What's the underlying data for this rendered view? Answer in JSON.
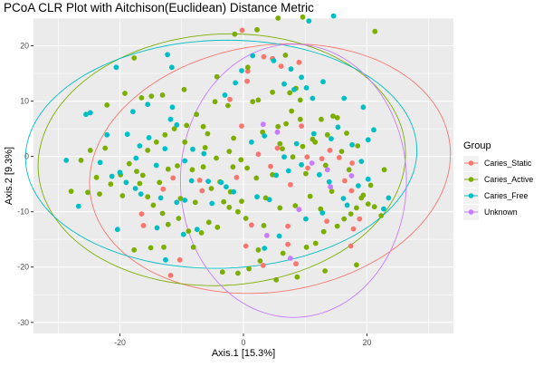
{
  "chart_data": {
    "type": "scatter",
    "title": "PCoA CLR Plot with Aitchison(Euclidean) Distance Metric",
    "xlabel": "Axis.1   [15.3%]",
    "ylabel": "Axis.2   [9.3%]",
    "xlim": [
      -34,
      34
    ],
    "ylim": [
      -32,
      25
    ],
    "xticks": [
      -20,
      0,
      20
    ],
    "yticks": [
      -30,
      -20,
      -10,
      0,
      10,
      20
    ],
    "grid": true,
    "legend": {
      "title": "Group",
      "position": "right"
    },
    "series": [
      {
        "name": "Caries_Static",
        "color": "#F8766D",
        "points": [
          [
            -0.2,
            22.8
          ],
          [
            3.3,
            18
          ],
          [
            4.7,
            17.7
          ],
          [
            9,
            17
          ],
          [
            6.1,
            16.3
          ],
          [
            0.7,
            15.4
          ],
          [
            0.6,
            13.6
          ],
          [
            -2.2,
            10.3
          ],
          [
            -0.3,
            5.5
          ],
          [
            2.4,
            0.4
          ],
          [
            -1.1,
            -3.8
          ],
          [
            -11.4,
            -3.9
          ],
          [
            -7.1,
            -4.3
          ],
          [
            -13,
            -5.9
          ],
          [
            -6.7,
            -6.2
          ],
          [
            -16.5,
            -10.4
          ],
          [
            -16.2,
            -12.5
          ],
          [
            -10.3,
            -18.7
          ],
          [
            -11.8,
            -21.5
          ],
          [
            0.4,
            -16.2
          ],
          [
            1.3,
            -12.4
          ],
          [
            7.2,
            -15.9
          ],
          [
            3.2,
            -19.7
          ],
          [
            8.5,
            -19.4
          ],
          [
            17.4,
            -16.2
          ],
          [
            13.5,
            -11.7
          ],
          [
            17.5,
            -6.2
          ],
          [
            16.4,
            -4.4
          ],
          [
            17.6,
            -1.2
          ],
          [
            18.8,
            -11.3
          ],
          [
            17.8,
            -13.1
          ],
          [
            7.2,
            -12.6
          ],
          [
            7.6,
            -5.1
          ],
          [
            5.5,
            1.5
          ],
          [
            4.4,
            -1.8
          ],
          [
            10.3,
            -0.1
          ],
          [
            15.5,
            -0.2
          ],
          [
            10.4,
            -2.1
          ],
          [
            14,
            1.1
          ],
          [
            12.7,
            -0.4
          ],
          [
            9.4,
            5.5
          ]
        ]
      },
      {
        "name": "Caries_Active",
        "color": "#7CAE00",
        "points": [
          [
            2.2,
            22.9
          ],
          [
            -1.4,
            22.1
          ],
          [
            21.3,
            22.6
          ],
          [
            5.6,
            25
          ],
          [
            9.6,
            25.2
          ],
          [
            -17.7,
            17.8
          ],
          [
            -19.2,
            11.4
          ],
          [
            -22.1,
            9.3
          ],
          [
            -16.5,
            10.6
          ],
          [
            -14.9,
            10.9
          ],
          [
            -13.1,
            11.1
          ],
          [
            -9.6,
            12.1
          ],
          [
            -9.2,
            5.6
          ],
          [
            -7.6,
            7.6
          ],
          [
            -6.5,
            5.4
          ],
          [
            -5.8,
            4.1
          ],
          [
            -4.6,
            9.9
          ],
          [
            -2.5,
            9.2
          ],
          [
            -2.3,
            0.9
          ],
          [
            -1.6,
            3.3
          ],
          [
            -0.4,
            -0.6
          ],
          [
            1.5,
            9.9
          ],
          [
            2.4,
            10.2
          ],
          [
            3.1,
            4.4
          ],
          [
            4.7,
            11.6
          ],
          [
            5.6,
            5.4
          ],
          [
            5.9,
            2.3
          ],
          [
            6.9,
            5.9
          ],
          [
            7.5,
            11.5
          ],
          [
            8,
            -0.1
          ],
          [
            9.6,
            1.8
          ],
          [
            10.1,
            -3.1
          ],
          [
            11.6,
            2.6
          ],
          [
            12.6,
            6.7
          ],
          [
            13.3,
            -1.6
          ],
          [
            13.6,
            3.9
          ],
          [
            14.5,
            7.3
          ],
          [
            15.2,
            7
          ],
          [
            15.9,
            0.9
          ],
          [
            16.7,
            4.2
          ],
          [
            17.1,
            -2.4
          ],
          [
            18.5,
            1.9
          ],
          [
            19.1,
            -7.5
          ],
          [
            18.3,
            -9.3
          ],
          [
            17.4,
            -10.4
          ],
          [
            16.3,
            -11.3
          ],
          [
            15.2,
            -12.6
          ],
          [
            13,
            -13.6
          ],
          [
            11.7,
            -15.7
          ],
          [
            10.2,
            -16.4
          ],
          [
            6.4,
            -17.5
          ],
          [
            2.4,
            -16.9
          ],
          [
            3.3,
            -12.5
          ],
          [
            0.4,
            -11.2
          ],
          [
            -0.9,
            -10
          ],
          [
            -2.3,
            -9.2
          ],
          [
            -3.2,
            -8.2
          ],
          [
            -4.2,
            -12.8
          ],
          [
            -5.6,
            -11.9
          ],
          [
            -6.8,
            -13.8
          ],
          [
            -8.1,
            -16.4
          ],
          [
            -8.9,
            -13.5
          ],
          [
            -10.5,
            -11.2
          ],
          [
            -12.2,
            -12.3
          ],
          [
            -13.1,
            -10.3
          ],
          [
            -14.6,
            -8.8
          ],
          [
            -15.5,
            -7.3
          ],
          [
            -16.8,
            -4.9
          ],
          [
            -17.3,
            -2.7
          ],
          [
            -18.5,
            -1.3
          ],
          [
            -19.9,
            -3.3
          ],
          [
            -21.5,
            -5
          ],
          [
            -23.3,
            -6.8
          ],
          [
            -25.2,
            -6.5
          ],
          [
            -27.9,
            -6.3
          ],
          [
            -26.3,
            -0.7
          ],
          [
            -24.8,
            1.1
          ],
          [
            -22.4,
            1.5
          ],
          [
            -23.8,
            -3.8
          ],
          [
            -19.6,
            -7.1
          ],
          [
            -17.7,
            -16.9
          ],
          [
            -15,
            -16.5
          ],
          [
            -12.9,
            -16.4
          ],
          [
            -3.4,
            -20.9
          ],
          [
            -0.9,
            -21.1
          ],
          [
            0.9,
            -20.3
          ],
          [
            2.7,
            -18.9
          ],
          [
            5.3,
            -22.3
          ],
          [
            8.7,
            -21.8
          ],
          [
            13.2,
            -20.7
          ],
          [
            18.3,
            -19.6
          ],
          [
            22.3,
            -10.7
          ],
          [
            21.2,
            -9.1
          ],
          [
            20.2,
            -8.6
          ],
          [
            19.4,
            -7
          ],
          [
            20.6,
            -5.2
          ],
          [
            22.8,
            -2.4
          ],
          [
            -3.8,
            -4.6
          ],
          [
            -6.5,
            -1.9
          ],
          [
            -9.5,
            2.6
          ],
          [
            -11.2,
            5
          ],
          [
            -12.7,
            3.9
          ],
          [
            -14.1,
            2.6
          ],
          [
            -15.5,
            1.1
          ],
          [
            -16.3,
            -3.4
          ],
          [
            -13.6,
            -4.7
          ],
          [
            -10.2,
            -7.6
          ],
          [
            -7.8,
            -8.3
          ],
          [
            -5.2,
            -5.8
          ],
          [
            -2.1,
            -6.4
          ],
          [
            -0.3,
            -8.1
          ],
          [
            3.6,
            -7.5
          ],
          [
            5.9,
            -9.3
          ],
          [
            8.4,
            -8.9
          ],
          [
            10.8,
            -7.2
          ],
          [
            12.5,
            -9.5
          ],
          [
            14.3,
            -6.3
          ],
          [
            11.2,
            3.1
          ],
          [
            9.2,
            6.7
          ],
          [
            7.8,
            8.2
          ],
          [
            6.3,
            1.4
          ],
          [
            4.7,
            -3.3
          ],
          [
            2.1,
            -3.9
          ],
          [
            0.6,
            -2.1
          ],
          [
            -1.7,
            -1.9
          ],
          [
            -4.4,
            -0.3
          ],
          [
            -6.2,
            1.6
          ],
          [
            -8.3,
            -2.4
          ],
          [
            -10.7,
            -1.7
          ],
          [
            -12.2,
            -2.3
          ],
          [
            -4.3,
            14.4
          ],
          [
            0.7,
            16.1
          ],
          [
            6.8,
            18.3
          ],
          [
            8.5,
            12.3
          ],
          [
            9.2,
            10.2
          ]
        ]
      },
      {
        "name": "Caries_Free",
        "color": "#00BFC4",
        "points": [
          [
            10.6,
            24.5
          ],
          [
            14.6,
            25.4
          ],
          [
            -12.3,
            18.4
          ],
          [
            -11.6,
            16.1
          ],
          [
            -20.6,
            16.1
          ],
          [
            -17.9,
            8.1
          ],
          [
            -15.5,
            9.4
          ],
          [
            -11.5,
            8.9
          ],
          [
            -11.8,
            6.7
          ],
          [
            -10.8,
            5.7
          ],
          [
            -3,
            11.1
          ],
          [
            -1.3,
            13.3
          ],
          [
            -0.3,
            15.5
          ],
          [
            1.5,
            18.2
          ],
          [
            4.9,
            17.3
          ],
          [
            6.6,
            13.1
          ],
          [
            7.7,
            15.8
          ],
          [
            8.2,
            12.1
          ],
          [
            9.4,
            14.3
          ],
          [
            10.2,
            12.4
          ],
          [
            11.2,
            10.5
          ],
          [
            12.9,
            13.5
          ],
          [
            16.3,
            10.5
          ],
          [
            19.4,
            8.9
          ],
          [
            21.1,
            4.8
          ],
          [
            20.2,
            3
          ],
          [
            19.1,
            -0.9
          ],
          [
            18.6,
            -5.3
          ],
          [
            20.2,
            -4.1
          ],
          [
            23.5,
            -7.5
          ],
          [
            22.7,
            -9.5
          ],
          [
            16.8,
            -8.8
          ],
          [
            16.2,
            -7.6
          ],
          [
            13.9,
            -4.6
          ],
          [
            12.3,
            -3.3
          ],
          [
            9.4,
            -1.5
          ],
          [
            7.3,
            -2.6
          ],
          [
            5.3,
            -3.4
          ],
          [
            4.2,
            -7.8
          ],
          [
            2.2,
            -7.3
          ],
          [
            -1.6,
            -6.4
          ],
          [
            -2.8,
            -5.5
          ],
          [
            -5.7,
            -4.5
          ],
          [
            -8.4,
            -4.4
          ],
          [
            -9.5,
            -7.9
          ],
          [
            -10.8,
            -8.3
          ],
          [
            -13.4,
            -7.5
          ],
          [
            -16.6,
            -6.8
          ],
          [
            -17.5,
            -5.8
          ],
          [
            -19,
            -4.7
          ],
          [
            -20,
            -2.9
          ],
          [
            -21.3,
            -3.6
          ],
          [
            -23.2,
            -1.1
          ],
          [
            -22.1,
            3.9
          ],
          [
            -25.5,
            7.6
          ],
          [
            -24.8,
            7.9
          ],
          [
            -28.7,
            -0.7
          ],
          [
            -26.7,
            -9
          ],
          [
            -20.4,
            -13.2
          ],
          [
            -14,
            -12.9
          ],
          [
            -12.6,
            -18.7
          ],
          [
            -9.7,
            -14.1
          ],
          [
            -7.5,
            -13.2
          ],
          [
            -5.1,
            -8.5
          ],
          [
            -3.6,
            -4.7
          ],
          [
            -6.4,
            0.5
          ],
          [
            -8.2,
            1.3
          ],
          [
            -9.5,
            -0.8
          ],
          [
            -12.7,
            1.4
          ],
          [
            -15.3,
            3.4
          ],
          [
            -16.8,
            1.9
          ],
          [
            -18.8,
            4
          ],
          [
            -17.4,
            -0.3
          ],
          [
            -14.1,
            -1.6
          ],
          [
            1.3,
            2.6
          ],
          [
            3.4,
            3.7
          ],
          [
            6.6,
            -0.1
          ],
          [
            8.6,
            2.3
          ],
          [
            11.4,
            4.1
          ],
          [
            14.2,
            3.2
          ],
          [
            15.3,
            5.3
          ],
          [
            17.6,
            2.1
          ],
          [
            3.4,
            -16.6
          ],
          [
            5.8,
            -14.4
          ],
          [
            10.1,
            -11.3
          ],
          [
            12.8,
            -10.2
          ]
        ]
      },
      {
        "name": "Unknown",
        "color": "#C77CFF",
        "points": [
          [
            3.2,
            5.8
          ],
          [
            5.5,
            4.4
          ],
          [
            3.8,
            -14.3
          ],
          [
            7.6,
            -18.4
          ],
          [
            14.1,
            -5.5
          ],
          [
            17.5,
            -3.5
          ],
          [
            13.6,
            -2.4
          ],
          [
            11.1,
            -1.2
          ],
          [
            9,
            -9.6
          ]
        ]
      }
    ],
    "ellipses": [
      {
        "series": "Caries_Static",
        "center": [
          4.3,
          -2.2
        ],
        "radii": [
          29.5,
          22.2
        ],
        "angle_deg": 12
      },
      {
        "series": "Caries_Active",
        "center": [
          -3.5,
          -0.6
        ],
        "radii": [
          29.8,
          22.7
        ],
        "angle_deg": 5
      },
      {
        "series": "Caries_Free",
        "center": [
          -3.6,
          0.4
        ],
        "radii": [
          31.7,
          20.6
        ],
        "angle_deg": 2
      },
      {
        "series": "Unknown",
        "center": [
          8.1,
          -4.4
        ],
        "radii": [
          18.3,
          24.7
        ],
        "angle_deg": 0
      }
    ]
  }
}
